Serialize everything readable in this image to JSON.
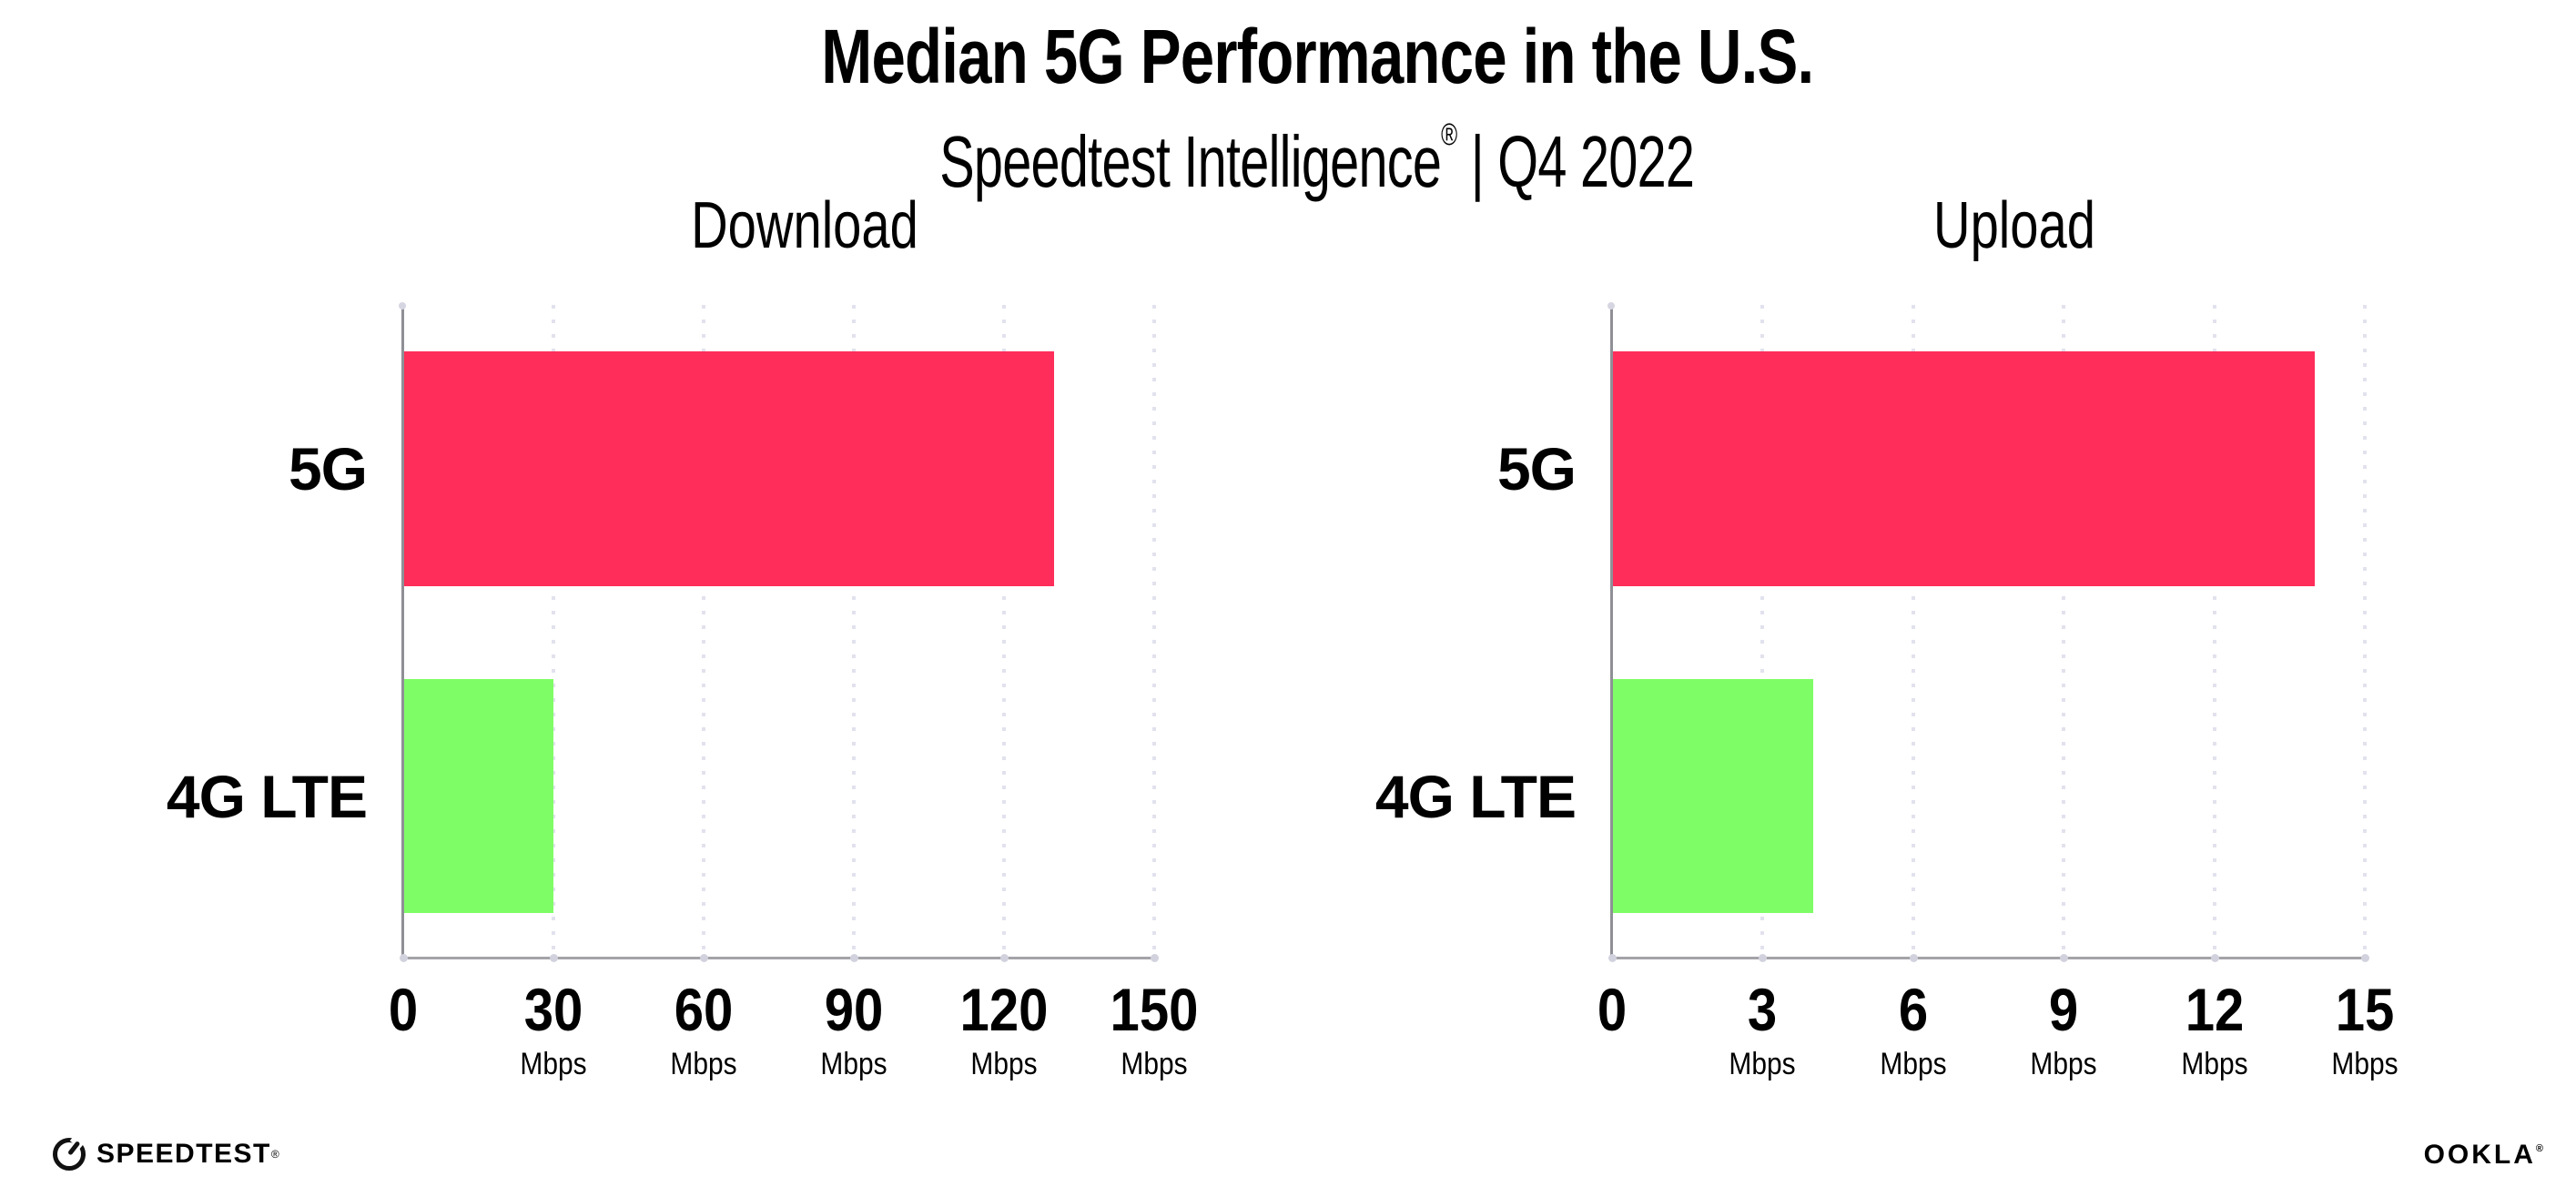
{
  "header": {
    "title": "Median 5G Performance in the U.S.",
    "subtitle_product": "Speedtest Intelligence",
    "subtitle_reg": "®",
    "subtitle_rest": " | Q4 2022"
  },
  "chart_data": [
    {
      "type": "bar",
      "orientation": "horizontal",
      "title": "Download",
      "categories": [
        "5G",
        "4G LTE"
      ],
      "values": [
        130,
        30
      ],
      "unit": "Mbps",
      "xlabel": "",
      "ylabel": "",
      "xlim": [
        0,
        150
      ],
      "xticks": [
        0,
        30,
        60,
        90,
        120,
        150
      ],
      "grid": "dotted-vertical",
      "legend": "none",
      "bar_colors": [
        "#FF2D59",
        "#7FFD66"
      ]
    },
    {
      "type": "bar",
      "orientation": "horizontal",
      "title": "Upload",
      "categories": [
        "5G",
        "4G LTE"
      ],
      "values": [
        14,
        4
      ],
      "unit": "Mbps",
      "xlabel": "",
      "ylabel": "",
      "xlim": [
        0,
        15
      ],
      "xticks": [
        0,
        3,
        6,
        9,
        12,
        15
      ],
      "grid": "dotted-vertical",
      "legend": "none",
      "bar_colors": [
        "#FF2D59",
        "#7FFD66"
      ]
    }
  ],
  "footer": {
    "speedtest_label": "SPEEDTEST",
    "speedtest_reg": "®",
    "ookla_label": "OOKLA",
    "ookla_reg": "®"
  },
  "colors": {
    "bar_5g": "#FF2D59",
    "bar_4g_lte": "#7FFD66",
    "gridline": "#E2E2EE",
    "axis_line": "#A3A3A8",
    "text": "#000000"
  }
}
